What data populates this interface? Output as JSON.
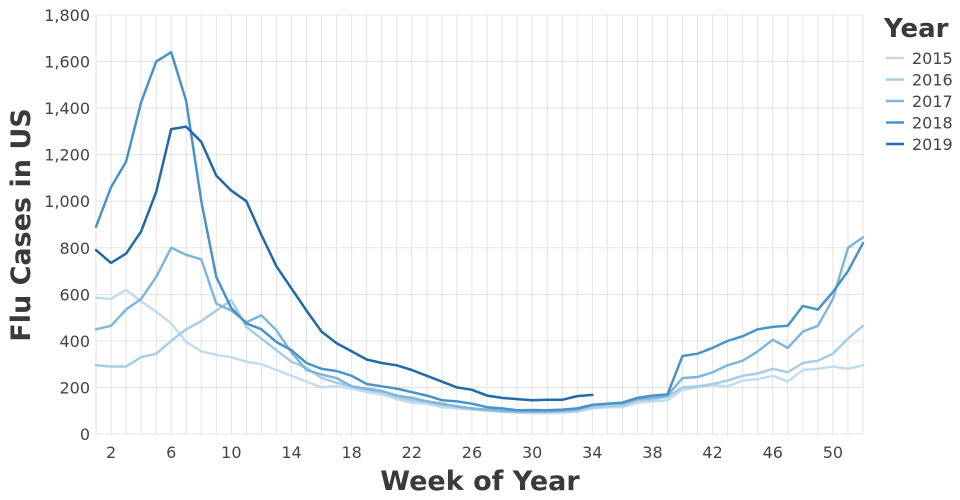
{
  "chart_data": {
    "type": "line",
    "title": "",
    "xlabel": "Week of Year",
    "ylabel": "Flu Cases in US",
    "xlim": [
      1,
      52
    ],
    "ylim": [
      0,
      1800
    ],
    "x_ticks": [
      2,
      6,
      10,
      14,
      18,
      22,
      26,
      30,
      34,
      38,
      42,
      46,
      50
    ],
    "y_ticks": [
      0,
      200,
      400,
      600,
      800,
      1000,
      1200,
      1400,
      1600,
      1800
    ],
    "y_tick_labels": [
      "0",
      "200",
      "400",
      "600",
      "800",
      "1,000",
      "1,200",
      "1,400",
      "1,600",
      "1,800"
    ],
    "grid": true,
    "legend": {
      "title": "Year",
      "placement": "right"
    },
    "series": [
      {
        "name": "2015",
        "color": "#c2dcec",
        "x": [
          1,
          2,
          3,
          4,
          5,
          6,
          7,
          8,
          9,
          10,
          11,
          12,
          13,
          14,
          15,
          16,
          17,
          18,
          19,
          20,
          21,
          22,
          23,
          24,
          25,
          26,
          27,
          28,
          29,
          30,
          31,
          32,
          33,
          34,
          35,
          36,
          37,
          38,
          39,
          40,
          41,
          42,
          43,
          44,
          45,
          46,
          47,
          48,
          49,
          50,
          51,
          52
        ],
        "values": [
          585,
          580,
          620,
          570,
          525,
          475,
          395,
          355,
          340,
          330,
          310,
          300,
          275,
          250,
          225,
          200,
          205,
          195,
          180,
          170,
          150,
          135,
          130,
          115,
          110,
          105,
          100,
          95,
          92,
          90,
          90,
          92,
          95,
          110,
          115,
          115,
          135,
          140,
          145,
          190,
          200,
          210,
          205,
          230,
          235,
          250,
          225,
          275,
          280,
          290,
          280,
          295
        ]
      },
      {
        "name": "2016",
        "color": "#a6cde3",
        "x": [
          1,
          2,
          3,
          4,
          5,
          6,
          7,
          8,
          9,
          10,
          11,
          12,
          13,
          14,
          15,
          16,
          17,
          18,
          19,
          20,
          21,
          22,
          23,
          24,
          25,
          26,
          27,
          28,
          29,
          30,
          31,
          32,
          33,
          34,
          35,
          36,
          37,
          38,
          39,
          40,
          41,
          42,
          43,
          44,
          45,
          46,
          47,
          48,
          49,
          50,
          51,
          52
        ],
        "values": [
          295,
          290,
          290,
          330,
          345,
          400,
          450,
          485,
          530,
          575,
          460,
          410,
          360,
          310,
          285,
          240,
          220,
          205,
          190,
          180,
          160,
          145,
          140,
          125,
          120,
          108,
          102,
          98,
          95,
          95,
          95,
          97,
          100,
          115,
          120,
          122,
          145,
          150,
          160,
          200,
          205,
          215,
          230,
          250,
          260,
          280,
          265,
          305,
          315,
          345,
          410,
          465
        ]
      },
      {
        "name": "2017",
        "color": "#7fb6dc",
        "x": [
          1,
          2,
          3,
          4,
          5,
          6,
          7,
          8,
          9,
          10,
          11,
          12,
          13,
          14,
          15,
          16,
          17,
          18,
          19,
          20,
          21,
          22,
          23,
          24,
          25,
          26,
          27,
          28,
          29,
          30,
          31,
          32,
          33,
          34,
          35,
          36,
          37,
          38,
          39,
          40,
          41,
          42,
          43,
          44,
          45,
          46,
          47,
          48,
          49,
          50,
          51,
          52
        ],
        "values": [
          450,
          465,
          535,
          580,
          675,
          800,
          770,
          750,
          560,
          530,
          480,
          510,
          445,
          350,
          275,
          255,
          240,
          205,
          195,
          185,
          165,
          155,
          140,
          130,
          118,
          110,
          105,
          100,
          98,
          97,
          97,
          100,
          105,
          125,
          130,
          132,
          150,
          155,
          165,
          240,
          245,
          265,
          295,
          315,
          355,
          405,
          370,
          440,
          465,
          580,
          800,
          845
        ]
      },
      {
        "name": "2018",
        "color": "#4a93c8",
        "x": [
          1,
          2,
          3,
          4,
          5,
          6,
          7,
          8,
          9,
          10,
          11,
          12,
          13,
          14,
          15,
          16,
          17,
          18,
          19,
          20,
          21,
          22,
          23,
          24,
          25,
          26,
          27,
          28,
          29,
          30,
          31,
          32,
          33,
          34,
          35,
          36,
          37,
          38,
          39,
          40,
          41,
          42,
          43,
          44,
          45,
          46,
          47,
          48,
          49,
          50,
          51,
          52
        ],
        "values": [
          890,
          1060,
          1170,
          1425,
          1600,
          1640,
          1430,
          1000,
          675,
          540,
          475,
          450,
          395,
          360,
          305,
          280,
          270,
          250,
          215,
          205,
          195,
          180,
          165,
          145,
          140,
          130,
          115,
          110,
          102,
          103,
          102,
          105,
          110,
          125,
          130,
          135,
          155,
          165,
          170,
          335,
          345,
          370,
          400,
          420,
          450,
          460,
          465,
          550,
          535,
          610,
          700,
          820
        ]
      },
      {
        "name": "2019",
        "color": "#2169a9",
        "x": [
          1,
          2,
          3,
          4,
          5,
          6,
          7,
          8,
          9,
          10,
          11,
          12,
          13,
          14,
          15,
          16,
          17,
          18,
          19,
          20,
          21,
          22,
          23,
          24,
          25,
          26,
          27,
          28,
          29,
          30,
          31,
          32,
          33,
          34
        ],
        "values": [
          790,
          735,
          775,
          870,
          1040,
          1310,
          1320,
          1255,
          1110,
          1045,
          1000,
          855,
          720,
          625,
          530,
          440,
          390,
          355,
          320,
          305,
          295,
          275,
          250,
          225,
          200,
          190,
          165,
          155,
          150,
          145,
          147,
          147,
          163,
          168
        ]
      }
    ]
  }
}
